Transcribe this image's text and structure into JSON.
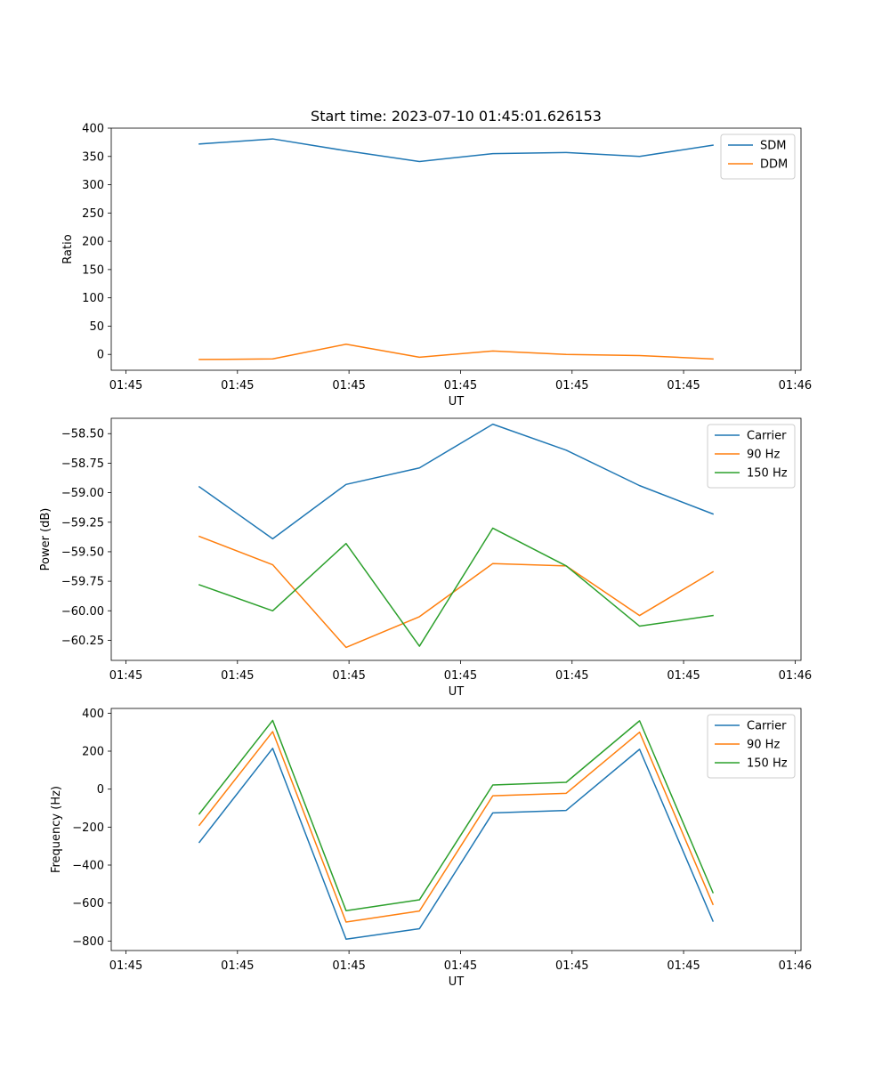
{
  "title": "Start time: 2023-07-10 01:45:01.626153",
  "chart_data": [
    {
      "type": "line",
      "title": "Start time: 2023-07-10 01:45:01.626153",
      "xlabel": "UT",
      "ylabel": "Ratio",
      "x": [
        1.0,
        2.0,
        3.0,
        4.0,
        5.0,
        6.0,
        7.0,
        8.0
      ],
      "xlim": [
        -0.2,
        9.2
      ],
      "xticks": [
        0,
        1.52,
        3.04,
        4.56,
        6.08,
        7.6,
        9.12
      ],
      "xtick_labels": [
        "01:45",
        "01:45",
        "01:45",
        "01:45",
        "01:45",
        "01:45",
        "01:46"
      ],
      "ylim": [
        -28,
        400
      ],
      "yticks": [
        0,
        50,
        100,
        150,
        200,
        250,
        300,
        350,
        400
      ],
      "ytick_labels": [
        "0",
        "50",
        "100",
        "150",
        "200",
        "250",
        "300",
        "350",
        "400"
      ],
      "legend_position": "top-right",
      "series": [
        {
          "name": "SDM",
          "color": "#1f77b4",
          "values": [
            372,
            381,
            360,
            341,
            355,
            357,
            350,
            370
          ]
        },
        {
          "name": "DDM",
          "color": "#ff7f0e",
          "values": [
            -9,
            -8,
            18,
            -5,
            6,
            0,
            -2,
            -8
          ]
        }
      ]
    },
    {
      "type": "line",
      "title": "",
      "xlabel": "UT",
      "ylabel": "Power (dB)",
      "x": [
        1.0,
        2.0,
        3.0,
        4.0,
        5.0,
        6.0,
        7.0,
        8.0
      ],
      "xlim": [
        -0.2,
        9.2
      ],
      "xticks": [
        0,
        1.52,
        3.04,
        4.56,
        6.08,
        7.6,
        9.12
      ],
      "xtick_labels": [
        "01:45",
        "01:45",
        "01:45",
        "01:45",
        "01:45",
        "01:45",
        "01:46"
      ],
      "ylim": [
        -60.42,
        -58.37
      ],
      "yticks": [
        -60.25,
        -60.0,
        -59.75,
        -59.5,
        -59.25,
        -59.0,
        -58.75,
        -58.5
      ],
      "ytick_labels": [
        "−60.25",
        "−60.00",
        "−59.75",
        "−59.50",
        "−59.25",
        "−59.00",
        "−58.75",
        "−58.50"
      ],
      "legend_position": "top-right",
      "series": [
        {
          "name": "Carrier",
          "color": "#1f77b4",
          "values": [
            -58.95,
            -59.39,
            -58.93,
            -58.79,
            -58.42,
            -58.64,
            -58.94,
            -59.18
          ]
        },
        {
          "name": "90 Hz",
          "color": "#ff7f0e",
          "values": [
            -59.37,
            -59.61,
            -60.31,
            -60.05,
            -59.6,
            -59.62,
            -60.04,
            -59.67
          ]
        },
        {
          "name": "150 Hz",
          "color": "#2ca02c",
          "values": [
            -59.78,
            -60.0,
            -59.43,
            -60.3,
            -59.3,
            -59.62,
            -60.13,
            -60.04
          ]
        }
      ]
    },
    {
      "type": "line",
      "title": "",
      "xlabel": "UT",
      "ylabel": "Frequency (Hz)",
      "x": [
        1.0,
        2.0,
        3.0,
        4.0,
        5.0,
        6.0,
        7.0,
        8.0
      ],
      "xlim": [
        -0.2,
        9.2
      ],
      "xticks": [
        0,
        1.52,
        3.04,
        4.56,
        6.08,
        7.6,
        9.12
      ],
      "xtick_labels": [
        "01:45",
        "01:45",
        "01:45",
        "01:45",
        "01:45",
        "01:45",
        "01:46"
      ],
      "ylim": [
        -850,
        425
      ],
      "yticks": [
        -800,
        -600,
        -400,
        -200,
        0,
        200,
        400
      ],
      "ytick_labels": [
        "−800",
        "−600",
        "−400",
        "−200",
        "0",
        "200",
        "400"
      ],
      "legend_position": "top-right",
      "series": [
        {
          "name": "Carrier",
          "color": "#1f77b4",
          "values": [
            -280,
            215,
            -790,
            -735,
            -125,
            -112,
            210,
            -695
          ]
        },
        {
          "name": "90 Hz",
          "color": "#ff7f0e",
          "values": [
            -190,
            303,
            -700,
            -642,
            -35,
            -22,
            300,
            -607
          ]
        },
        {
          "name": "150 Hz",
          "color": "#2ca02c",
          "values": [
            -130,
            362,
            -640,
            -583,
            22,
            36,
            360,
            -545
          ]
        }
      ]
    }
  ]
}
